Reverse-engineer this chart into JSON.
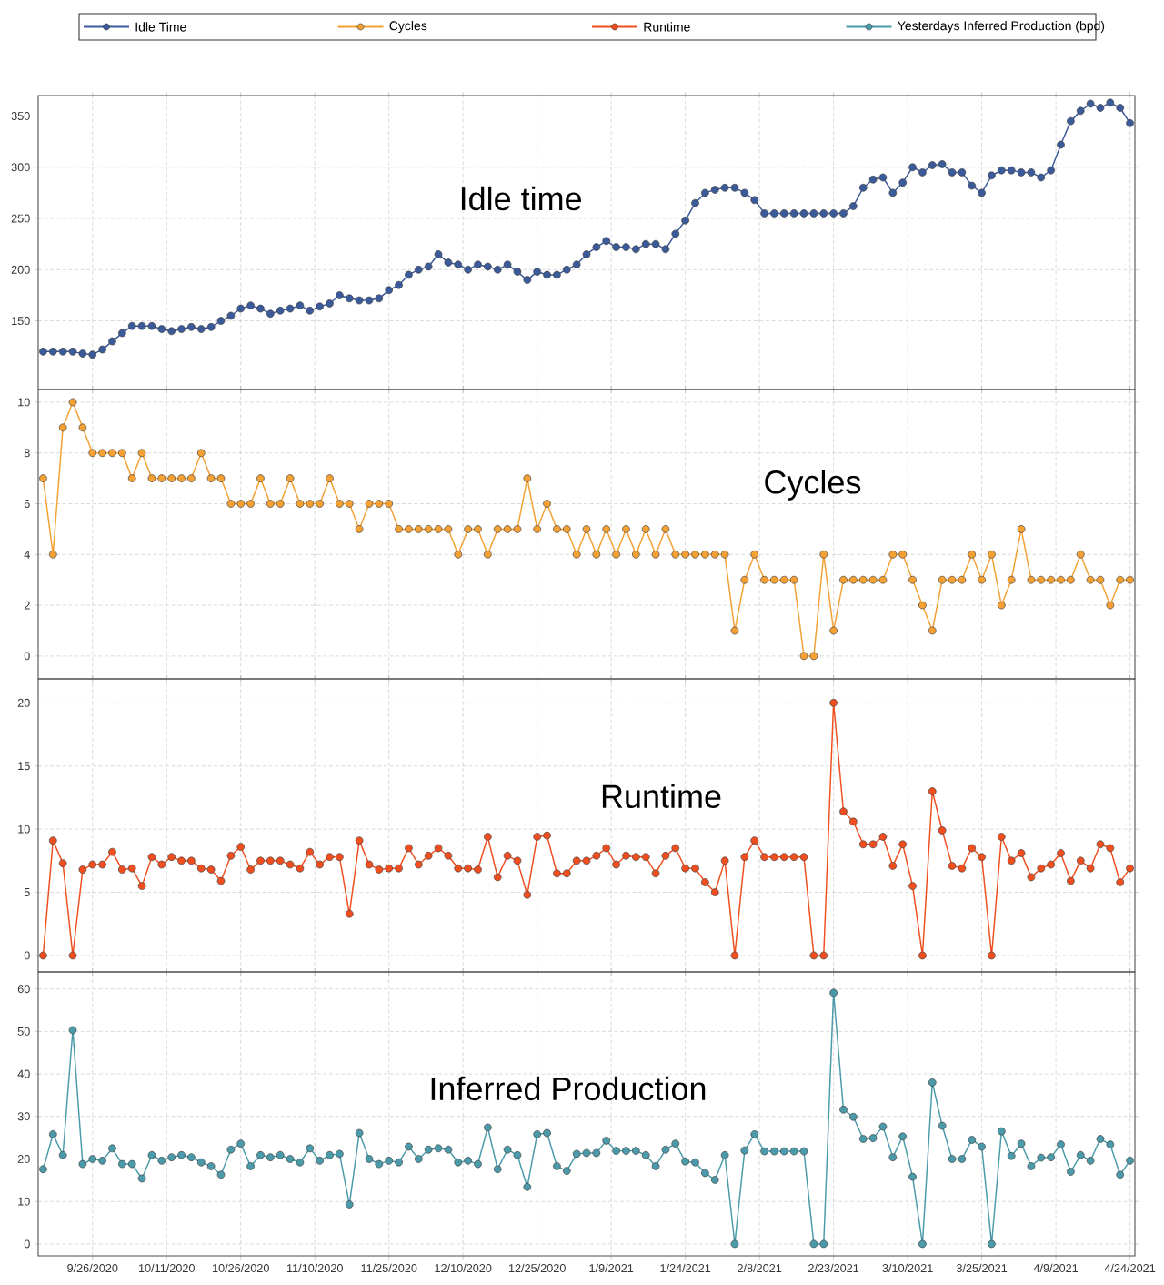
{
  "chart_data": [
    {
      "type": "line",
      "marker": "circle",
      "grid": true,
      "legend": "top",
      "tick_labels": "y",
      "annotations": [
        "Idle time"
      ],
      "xlim": [
        "2020-09-15",
        "2021-04-25"
      ],
      "ylim": [
        83,
        370
      ],
      "yticks": [
        150,
        200,
        250,
        300,
        350
      ],
      "xticks": [
        {
          "value": "2020-09-26",
          "label": null
        },
        {
          "value": "2020-10-11",
          "label": null
        },
        {
          "value": "2020-10-26",
          "label": null
        },
        {
          "value": "2020-11-10",
          "label": null
        },
        {
          "value": "2020-11-25",
          "label": null
        },
        {
          "value": "2020-12-10",
          "label": null
        },
        {
          "value": "2020-12-25",
          "label": null
        },
        {
          "value": "2021-01-09",
          "label": null
        },
        {
          "value": "2021-01-24",
          "label": null
        },
        {
          "value": "2021-02-08",
          "label": null
        },
        {
          "value": "2021-02-23",
          "label": null
        },
        {
          "value": "2021-03-10",
          "label": null
        },
        {
          "value": "2021-03-25",
          "label": null
        },
        {
          "value": "2021-04-09",
          "label": null
        },
        {
          "value": "2021-04-24",
          "label": null
        }
      ],
      "x": [
        "2020-09-16",
        "2020-09-18",
        "2020-09-20",
        "2020-09-22",
        "2020-09-24",
        "2020-09-26",
        "2020-09-28",
        "2020-09-30",
        "2020-10-02",
        "2020-10-04",
        "2020-10-06",
        "2020-10-08",
        "2020-10-10",
        "2020-10-12",
        "2020-10-14",
        "2020-10-16",
        "2020-10-18",
        "2020-10-20",
        "2020-10-22",
        "2020-10-24",
        "2020-10-26",
        "2020-10-28",
        "2020-10-30",
        "2020-11-01",
        "2020-11-03",
        "2020-11-05",
        "2020-11-07",
        "2020-11-09",
        "2020-11-11",
        "2020-11-13",
        "2020-11-15",
        "2020-11-17",
        "2020-11-19",
        "2020-11-21",
        "2020-11-23",
        "2020-11-25",
        "2020-11-27",
        "2020-11-29",
        "2020-12-01",
        "2020-12-03",
        "2020-12-05",
        "2020-12-07",
        "2020-12-09",
        "2020-12-11",
        "2020-12-13",
        "2020-12-15",
        "2020-12-17",
        "2020-12-19",
        "2020-12-21",
        "2020-12-23",
        "2020-12-25",
        "2020-12-27",
        "2020-12-29",
        "2020-12-31",
        "2021-01-02",
        "2021-01-04",
        "2021-01-06",
        "2021-01-08",
        "2021-01-10",
        "2021-01-12",
        "2021-01-14",
        "2021-01-16",
        "2021-01-18",
        "2021-01-20",
        "2021-01-22",
        "2021-01-24",
        "2021-01-26",
        "2021-01-28",
        "2021-01-30",
        "2021-02-01",
        "2021-02-03",
        "2021-02-05",
        "2021-02-07",
        "2021-02-09",
        "2021-02-11",
        "2021-02-13",
        "2021-02-15",
        "2021-02-17",
        "2021-02-19",
        "2021-02-21",
        "2021-02-23",
        "2021-02-25",
        "2021-02-27",
        "2021-03-01",
        "2021-03-03",
        "2021-03-05",
        "2021-03-07",
        "2021-03-09",
        "2021-03-11",
        "2021-03-13",
        "2021-03-15",
        "2021-03-17",
        "2021-03-19",
        "2021-03-21",
        "2021-03-23",
        "2021-03-25",
        "2021-03-27",
        "2021-03-29",
        "2021-03-31",
        "2021-04-02",
        "2021-04-04",
        "2021-04-06",
        "2021-04-08",
        "2021-04-10",
        "2021-04-12",
        "2021-04-14",
        "2021-04-16",
        "2021-04-18",
        "2021-04-20",
        "2021-04-22",
        "2021-04-24"
      ],
      "series": [
        {
          "name": "Idle Time",
          "color": "#3b5a9a",
          "values": [
            120,
            120,
            120,
            120,
            118,
            117,
            122,
            130,
            138,
            145,
            145,
            145,
            142,
            140,
            142,
            144,
            142,
            144,
            150,
            155,
            162,
            165,
            162,
            157,
            160,
            162,
            165,
            160,
            164,
            167,
            175,
            172,
            170,
            170,
            172,
            180,
            185,
            195,
            200,
            203,
            215,
            207,
            205,
            200,
            205,
            203,
            200,
            205,
            198,
            190,
            198,
            195,
            195,
            200,
            205,
            215,
            222,
            228,
            222,
            222,
            220,
            225,
            225,
            220,
            235,
            248,
            265,
            275,
            278,
            280,
            280,
            275,
            268,
            255,
            255,
            255,
            255,
            255,
            255,
            255,
            255,
            255,
            262,
            280,
            288,
            290,
            275,
            285,
            300,
            295,
            302,
            303,
            295,
            295,
            282,
            275,
            292,
            297,
            297,
            295,
            295,
            290,
            297,
            322,
            345,
            355,
            362,
            358,
            363,
            358,
            343
          ]
        }
      ]
    },
    {
      "type": "line",
      "marker": "circle",
      "grid": true,
      "legend": "top",
      "tick_labels": "y",
      "annotations": [
        "Cycles"
      ],
      "xlim": [
        "2020-09-15",
        "2021-04-25"
      ],
      "ylim": [
        -0.9,
        10.5
      ],
      "yticks": [
        0,
        2,
        4,
        6,
        8,
        10
      ],
      "xticks": [
        {
          "value": "2020-09-26",
          "label": null
        },
        {
          "value": "2020-10-11",
          "label": null
        },
        {
          "value": "2020-10-26",
          "label": null
        },
        {
          "value": "2020-11-10",
          "label": null
        },
        {
          "value": "2020-11-25",
          "label": null
        },
        {
          "value": "2020-12-10",
          "label": null
        },
        {
          "value": "2020-12-25",
          "label": null
        },
        {
          "value": "2021-01-09",
          "label": null
        },
        {
          "value": "2021-01-24",
          "label": null
        },
        {
          "value": "2021-02-08",
          "label": null
        },
        {
          "value": "2021-02-23",
          "label": null
        },
        {
          "value": "2021-03-10",
          "label": null
        },
        {
          "value": "2021-03-25",
          "label": null
        },
        {
          "value": "2021-04-09",
          "label": null
        },
        {
          "value": "2021-04-24",
          "label": null
        }
      ],
      "x": [
        "2020-09-16",
        "2020-09-18",
        "2020-09-20",
        "2020-09-22",
        "2020-09-24",
        "2020-09-26",
        "2020-09-28",
        "2020-09-30",
        "2020-10-02",
        "2020-10-04",
        "2020-10-06",
        "2020-10-08",
        "2020-10-10",
        "2020-10-12",
        "2020-10-14",
        "2020-10-16",
        "2020-10-18",
        "2020-10-20",
        "2020-10-22",
        "2020-10-24",
        "2020-10-26",
        "2020-10-28",
        "2020-10-30",
        "2020-11-01",
        "2020-11-03",
        "2020-11-05",
        "2020-11-07",
        "2020-11-09",
        "2020-11-11",
        "2020-11-13",
        "2020-11-15",
        "2020-11-17",
        "2020-11-19",
        "2020-11-21",
        "2020-11-23",
        "2020-11-25",
        "2020-11-27",
        "2020-11-29",
        "2020-12-01",
        "2020-12-03",
        "2020-12-05",
        "2020-12-07",
        "2020-12-09",
        "2020-12-11",
        "2020-12-13",
        "2020-12-15",
        "2020-12-17",
        "2020-12-19",
        "2020-12-21",
        "2020-12-23",
        "2020-12-25",
        "2020-12-27",
        "2020-12-29",
        "2020-12-31",
        "2021-01-02",
        "2021-01-04",
        "2021-01-06",
        "2021-01-08",
        "2021-01-10",
        "2021-01-12",
        "2021-01-14",
        "2021-01-16",
        "2021-01-18",
        "2021-01-20",
        "2021-01-22",
        "2021-01-24",
        "2021-01-26",
        "2021-01-28",
        "2021-01-30",
        "2021-02-01",
        "2021-02-03",
        "2021-02-05",
        "2021-02-07",
        "2021-02-09",
        "2021-02-11",
        "2021-02-13",
        "2021-02-15",
        "2021-02-17",
        "2021-02-19",
        "2021-02-21",
        "2021-02-23",
        "2021-02-25",
        "2021-02-27",
        "2021-03-01",
        "2021-03-03",
        "2021-03-05",
        "2021-03-07",
        "2021-03-09",
        "2021-03-11",
        "2021-03-13",
        "2021-03-15",
        "2021-03-17",
        "2021-03-19",
        "2021-03-21",
        "2021-03-23",
        "2021-03-25",
        "2021-03-27",
        "2021-03-29",
        "2021-03-31",
        "2021-04-02",
        "2021-04-04",
        "2021-04-06",
        "2021-04-08",
        "2021-04-10",
        "2021-04-12",
        "2021-04-14",
        "2021-04-16",
        "2021-04-18",
        "2021-04-20",
        "2021-04-22",
        "2021-04-24"
      ],
      "series": [
        {
          "name": "Cycles",
          "color": "#f5a033",
          "values": [
            7,
            4,
            9,
            10,
            9,
            8,
            8,
            8,
            8,
            7,
            8,
            7,
            7,
            7,
            7,
            7,
            8,
            7,
            7,
            6,
            6,
            6,
            7,
            6,
            6,
            7,
            6,
            6,
            6,
            7,
            6,
            6,
            5,
            6,
            6,
            6,
            5,
            5,
            5,
            5,
            5,
            5,
            4,
            5,
            5,
            4,
            5,
            5,
            5,
            7,
            5,
            6,
            5,
            5,
            4,
            5,
            4,
            5,
            4,
            5,
            4,
            5,
            4,
            5,
            4,
            4,
            4,
            4,
            4,
            4,
            1,
            3,
            4,
            3,
            3,
            3,
            3,
            0,
            0,
            4,
            1,
            3,
            3,
            3,
            3,
            3,
            4,
            4,
            3,
            2,
            1,
            3,
            3,
            3,
            4,
            3,
            4,
            2,
            3,
            5,
            3,
            3,
            3,
            3,
            3,
            4,
            3,
            3,
            2,
            3,
            3
          ]
        }
      ]
    },
    {
      "type": "line",
      "marker": "circle",
      "grid": true,
      "legend": "top",
      "tick_labels": "y",
      "annotations": [
        "Runtime"
      ],
      "xlim": [
        "2020-09-15",
        "2021-04-25"
      ],
      "ylim": [
        -1.3,
        21.9
      ],
      "yticks": [
        0,
        5,
        10,
        15,
        20
      ],
      "xticks": [
        {
          "value": "2020-09-26",
          "label": null
        },
        {
          "value": "2020-10-11",
          "label": null
        },
        {
          "value": "2020-10-26",
          "label": null
        },
        {
          "value": "2020-11-10",
          "label": null
        },
        {
          "value": "2020-11-25",
          "label": null
        },
        {
          "value": "2020-12-10",
          "label": null
        },
        {
          "value": "2020-12-25",
          "label": null
        },
        {
          "value": "2021-01-09",
          "label": null
        },
        {
          "value": "2021-01-24",
          "label": null
        },
        {
          "value": "2021-02-08",
          "label": null
        },
        {
          "value": "2021-02-23",
          "label": null
        },
        {
          "value": "2021-03-10",
          "label": null
        },
        {
          "value": "2021-03-25",
          "label": null
        },
        {
          "value": "2021-04-09",
          "label": null
        },
        {
          "value": "2021-04-24",
          "label": null
        }
      ],
      "x": [
        "2020-09-16",
        "2020-09-18",
        "2020-09-20",
        "2020-09-22",
        "2020-09-24",
        "2020-09-26",
        "2020-09-28",
        "2020-09-30",
        "2020-10-02",
        "2020-10-04",
        "2020-10-06",
        "2020-10-08",
        "2020-10-10",
        "2020-10-12",
        "2020-10-14",
        "2020-10-16",
        "2020-10-18",
        "2020-10-20",
        "2020-10-22",
        "2020-10-24",
        "2020-10-26",
        "2020-10-28",
        "2020-10-30",
        "2020-11-01",
        "2020-11-03",
        "2020-11-05",
        "2020-11-07",
        "2020-11-09",
        "2020-11-11",
        "2020-11-13",
        "2020-11-15",
        "2020-11-17",
        "2020-11-19",
        "2020-11-21",
        "2020-11-23",
        "2020-11-25",
        "2020-11-27",
        "2020-11-29",
        "2020-12-01",
        "2020-12-03",
        "2020-12-05",
        "2020-12-07",
        "2020-12-09",
        "2020-12-11",
        "2020-12-13",
        "2020-12-15",
        "2020-12-17",
        "2020-12-19",
        "2020-12-21",
        "2020-12-23",
        "2020-12-25",
        "2020-12-27",
        "2020-12-29",
        "2020-12-31",
        "2021-01-02",
        "2021-01-04",
        "2021-01-06",
        "2021-01-08",
        "2021-01-10",
        "2021-01-12",
        "2021-01-14",
        "2021-01-16",
        "2021-01-18",
        "2021-01-20",
        "2021-01-22",
        "2021-01-24",
        "2021-01-26",
        "2021-01-28",
        "2021-01-30",
        "2021-02-01",
        "2021-02-03",
        "2021-02-05",
        "2021-02-07",
        "2021-02-09",
        "2021-02-11",
        "2021-02-13",
        "2021-02-15",
        "2021-02-17",
        "2021-02-19",
        "2021-02-21",
        "2021-02-23",
        "2021-02-25",
        "2021-02-27",
        "2021-03-01",
        "2021-03-03",
        "2021-03-05",
        "2021-03-07",
        "2021-03-09",
        "2021-03-11",
        "2021-03-13",
        "2021-03-15",
        "2021-03-17",
        "2021-03-19",
        "2021-03-21",
        "2021-03-23",
        "2021-03-25",
        "2021-03-27",
        "2021-03-29",
        "2021-03-31",
        "2021-04-02",
        "2021-04-04",
        "2021-04-06",
        "2021-04-08",
        "2021-04-10",
        "2021-04-12",
        "2021-04-14",
        "2021-04-16",
        "2021-04-18",
        "2021-04-20",
        "2021-04-22",
        "2021-04-24"
      ],
      "series": [
        {
          "name": "Runtime",
          "color": "#f04e1e",
          "values": [
            0,
            9.1,
            7.3,
            0,
            6.8,
            7.2,
            7.2,
            8.2,
            6.8,
            6.9,
            5.5,
            7.8,
            7.2,
            7.8,
            7.5,
            7.5,
            6.9,
            6.8,
            5.9,
            7.9,
            8.6,
            6.8,
            7.5,
            7.5,
            7.5,
            7.2,
            6.9,
            8.2,
            7.2,
            7.8,
            7.8,
            3.3,
            9.1,
            7.2,
            6.8,
            6.9,
            6.9,
            8.5,
            7.2,
            7.9,
            8.5,
            7.9,
            6.9,
            6.9,
            6.8,
            9.4,
            6.2,
            7.9,
            7.5,
            4.8,
            9.4,
            9.5,
            6.5,
            6.5,
            7.5,
            7.5,
            7.9,
            8.5,
            7.2,
            7.9,
            7.8,
            7.8,
            6.5,
            7.9,
            8.5,
            6.9,
            6.9,
            5.8,
            5.0,
            7.5,
            0,
            7.8,
            9.1,
            7.8,
            7.8,
            7.8,
            7.8,
            7.8,
            0,
            0,
            20,
            11.4,
            10.6,
            8.8,
            8.8,
            9.4,
            7.1,
            8.8,
            5.5,
            0,
            13,
            9.9,
            7.1,
            6.9,
            8.5,
            7.8,
            0,
            9.4,
            7.5,
            8.1,
            6.2,
            6.9,
            7.2,
            8.1,
            5.9,
            7.5,
            6.9,
            8.8,
            8.5,
            5.8,
            6.9
          ]
        }
      ]
    },
    {
      "type": "line",
      "marker": "circle",
      "grid": true,
      "legend": "top",
      "annotations": [
        "Inferred Production"
      ],
      "xlim": [
        "2020-09-15",
        "2021-04-25"
      ],
      "ylim": [
        -2.8,
        64
      ],
      "yticks": [
        0,
        10,
        20,
        30,
        40,
        50,
        60
      ],
      "xticks": [
        {
          "value": "2020-09-26",
          "label": "9/26/2020"
        },
        {
          "value": "2020-10-11",
          "label": "10/11/2020"
        },
        {
          "value": "2020-10-26",
          "label": "10/26/2020"
        },
        {
          "value": "2020-11-10",
          "label": "11/10/2020"
        },
        {
          "value": "2020-11-25",
          "label": "11/25/2020"
        },
        {
          "value": "2020-12-10",
          "label": "12/10/2020"
        },
        {
          "value": "2020-12-25",
          "label": "12/25/2020"
        },
        {
          "value": "2021-01-09",
          "label": "1/9/2021"
        },
        {
          "value": "2021-01-24",
          "label": "1/24/2021"
        },
        {
          "value": "2021-02-08",
          "label": "2/8/2021"
        },
        {
          "value": "2021-02-23",
          "label": "2/23/2021"
        },
        {
          "value": "2021-03-10",
          "label": "3/10/2021"
        },
        {
          "value": "2021-03-25",
          "label": "3/25/2021"
        },
        {
          "value": "2021-04-09",
          "label": "4/9/2021"
        },
        {
          "value": "2021-04-24",
          "label": "4/24/2021"
        }
      ],
      "x": [
        "2020-09-16",
        "2020-09-18",
        "2020-09-20",
        "2020-09-22",
        "2020-09-24",
        "2020-09-26",
        "2020-09-28",
        "2020-09-30",
        "2020-10-02",
        "2020-10-04",
        "2020-10-06",
        "2020-10-08",
        "2020-10-10",
        "2020-10-12",
        "2020-10-14",
        "2020-10-16",
        "2020-10-18",
        "2020-10-20",
        "2020-10-22",
        "2020-10-24",
        "2020-10-26",
        "2020-10-28",
        "2020-10-30",
        "2020-11-01",
        "2020-11-03",
        "2020-11-05",
        "2020-11-07",
        "2020-11-09",
        "2020-11-11",
        "2020-11-13",
        "2020-11-15",
        "2020-11-17",
        "2020-11-19",
        "2020-11-21",
        "2020-11-23",
        "2020-11-25",
        "2020-11-27",
        "2020-11-29",
        "2020-12-01",
        "2020-12-03",
        "2020-12-05",
        "2020-12-07",
        "2020-12-09",
        "2020-12-11",
        "2020-12-13",
        "2020-12-15",
        "2020-12-17",
        "2020-12-19",
        "2020-12-21",
        "2020-12-23",
        "2020-12-25",
        "2020-12-27",
        "2020-12-29",
        "2020-12-31",
        "2021-01-02",
        "2021-01-04",
        "2021-01-06",
        "2021-01-08",
        "2021-01-10",
        "2021-01-12",
        "2021-01-14",
        "2021-01-16",
        "2021-01-18",
        "2021-01-20",
        "2021-01-22",
        "2021-01-24",
        "2021-01-26",
        "2021-01-28",
        "2021-01-30",
        "2021-02-01",
        "2021-02-03",
        "2021-02-05",
        "2021-02-07",
        "2021-02-09",
        "2021-02-11",
        "2021-02-13",
        "2021-02-15",
        "2021-02-17",
        "2021-02-19",
        "2021-02-21",
        "2021-02-23",
        "2021-02-25",
        "2021-02-27",
        "2021-03-01",
        "2021-03-03",
        "2021-03-05",
        "2021-03-07",
        "2021-03-09",
        "2021-03-11",
        "2021-03-13",
        "2021-03-15",
        "2021-03-17",
        "2021-03-19",
        "2021-03-21",
        "2021-03-23",
        "2021-03-25",
        "2021-03-27",
        "2021-03-29",
        "2021-03-31",
        "2021-04-02",
        "2021-04-04",
        "2021-04-06",
        "2021-04-08",
        "2021-04-10",
        "2021-04-12",
        "2021-04-14",
        "2021-04-16",
        "2021-04-18",
        "2021-04-20",
        "2021-04-22",
        "2021-04-24"
      ],
      "series": [
        {
          "name": "Yesterdays Inferred Production (bpd)",
          "color": "#4a9aaa",
          "values": [
            17.6,
            25.8,
            20.9,
            50.3,
            18.8,
            20,
            19.6,
            22.5,
            18.8,
            18.8,
            15.4,
            20.9,
            19.6,
            20.4,
            20.9,
            20.4,
            19.2,
            18.3,
            16.3,
            22.2,
            23.6,
            18.3,
            20.9,
            20.4,
            20.9,
            20,
            19.2,
            22.5,
            19.6,
            20.9,
            21.2,
            9.3,
            26.1,
            20,
            18.8,
            19.6,
            19.2,
            22.9,
            20,
            22.2,
            22.5,
            22.2,
            19.2,
            19.6,
            18.8,
            27.4,
            17.6,
            22.2,
            20.9,
            13.4,
            25.8,
            26.1,
            18.3,
            17.2,
            21.2,
            21.4,
            21.4,
            24.3,
            21.9,
            21.9,
            21.9,
            20.9,
            18.3,
            22.2,
            23.6,
            19.4,
            19.2,
            16.7,
            15.1,
            20.9,
            0,
            22,
            25.8,
            21.8,
            21.8,
            21.8,
            21.8,
            21.8,
            0,
            0,
            59.1,
            31.6,
            29.9,
            24.7,
            24.9,
            27.6,
            20.4,
            25.3,
            15.8,
            0,
            38,
            27.8,
            20,
            20,
            24.5,
            22.9,
            0,
            26.5,
            20.7,
            23.6,
            18.3,
            20.3,
            20.4,
            23.4,
            17,
            20.9,
            19.6,
            24.7,
            23.4,
            16.3,
            19.6
          ]
        }
      ]
    }
  ]
}
